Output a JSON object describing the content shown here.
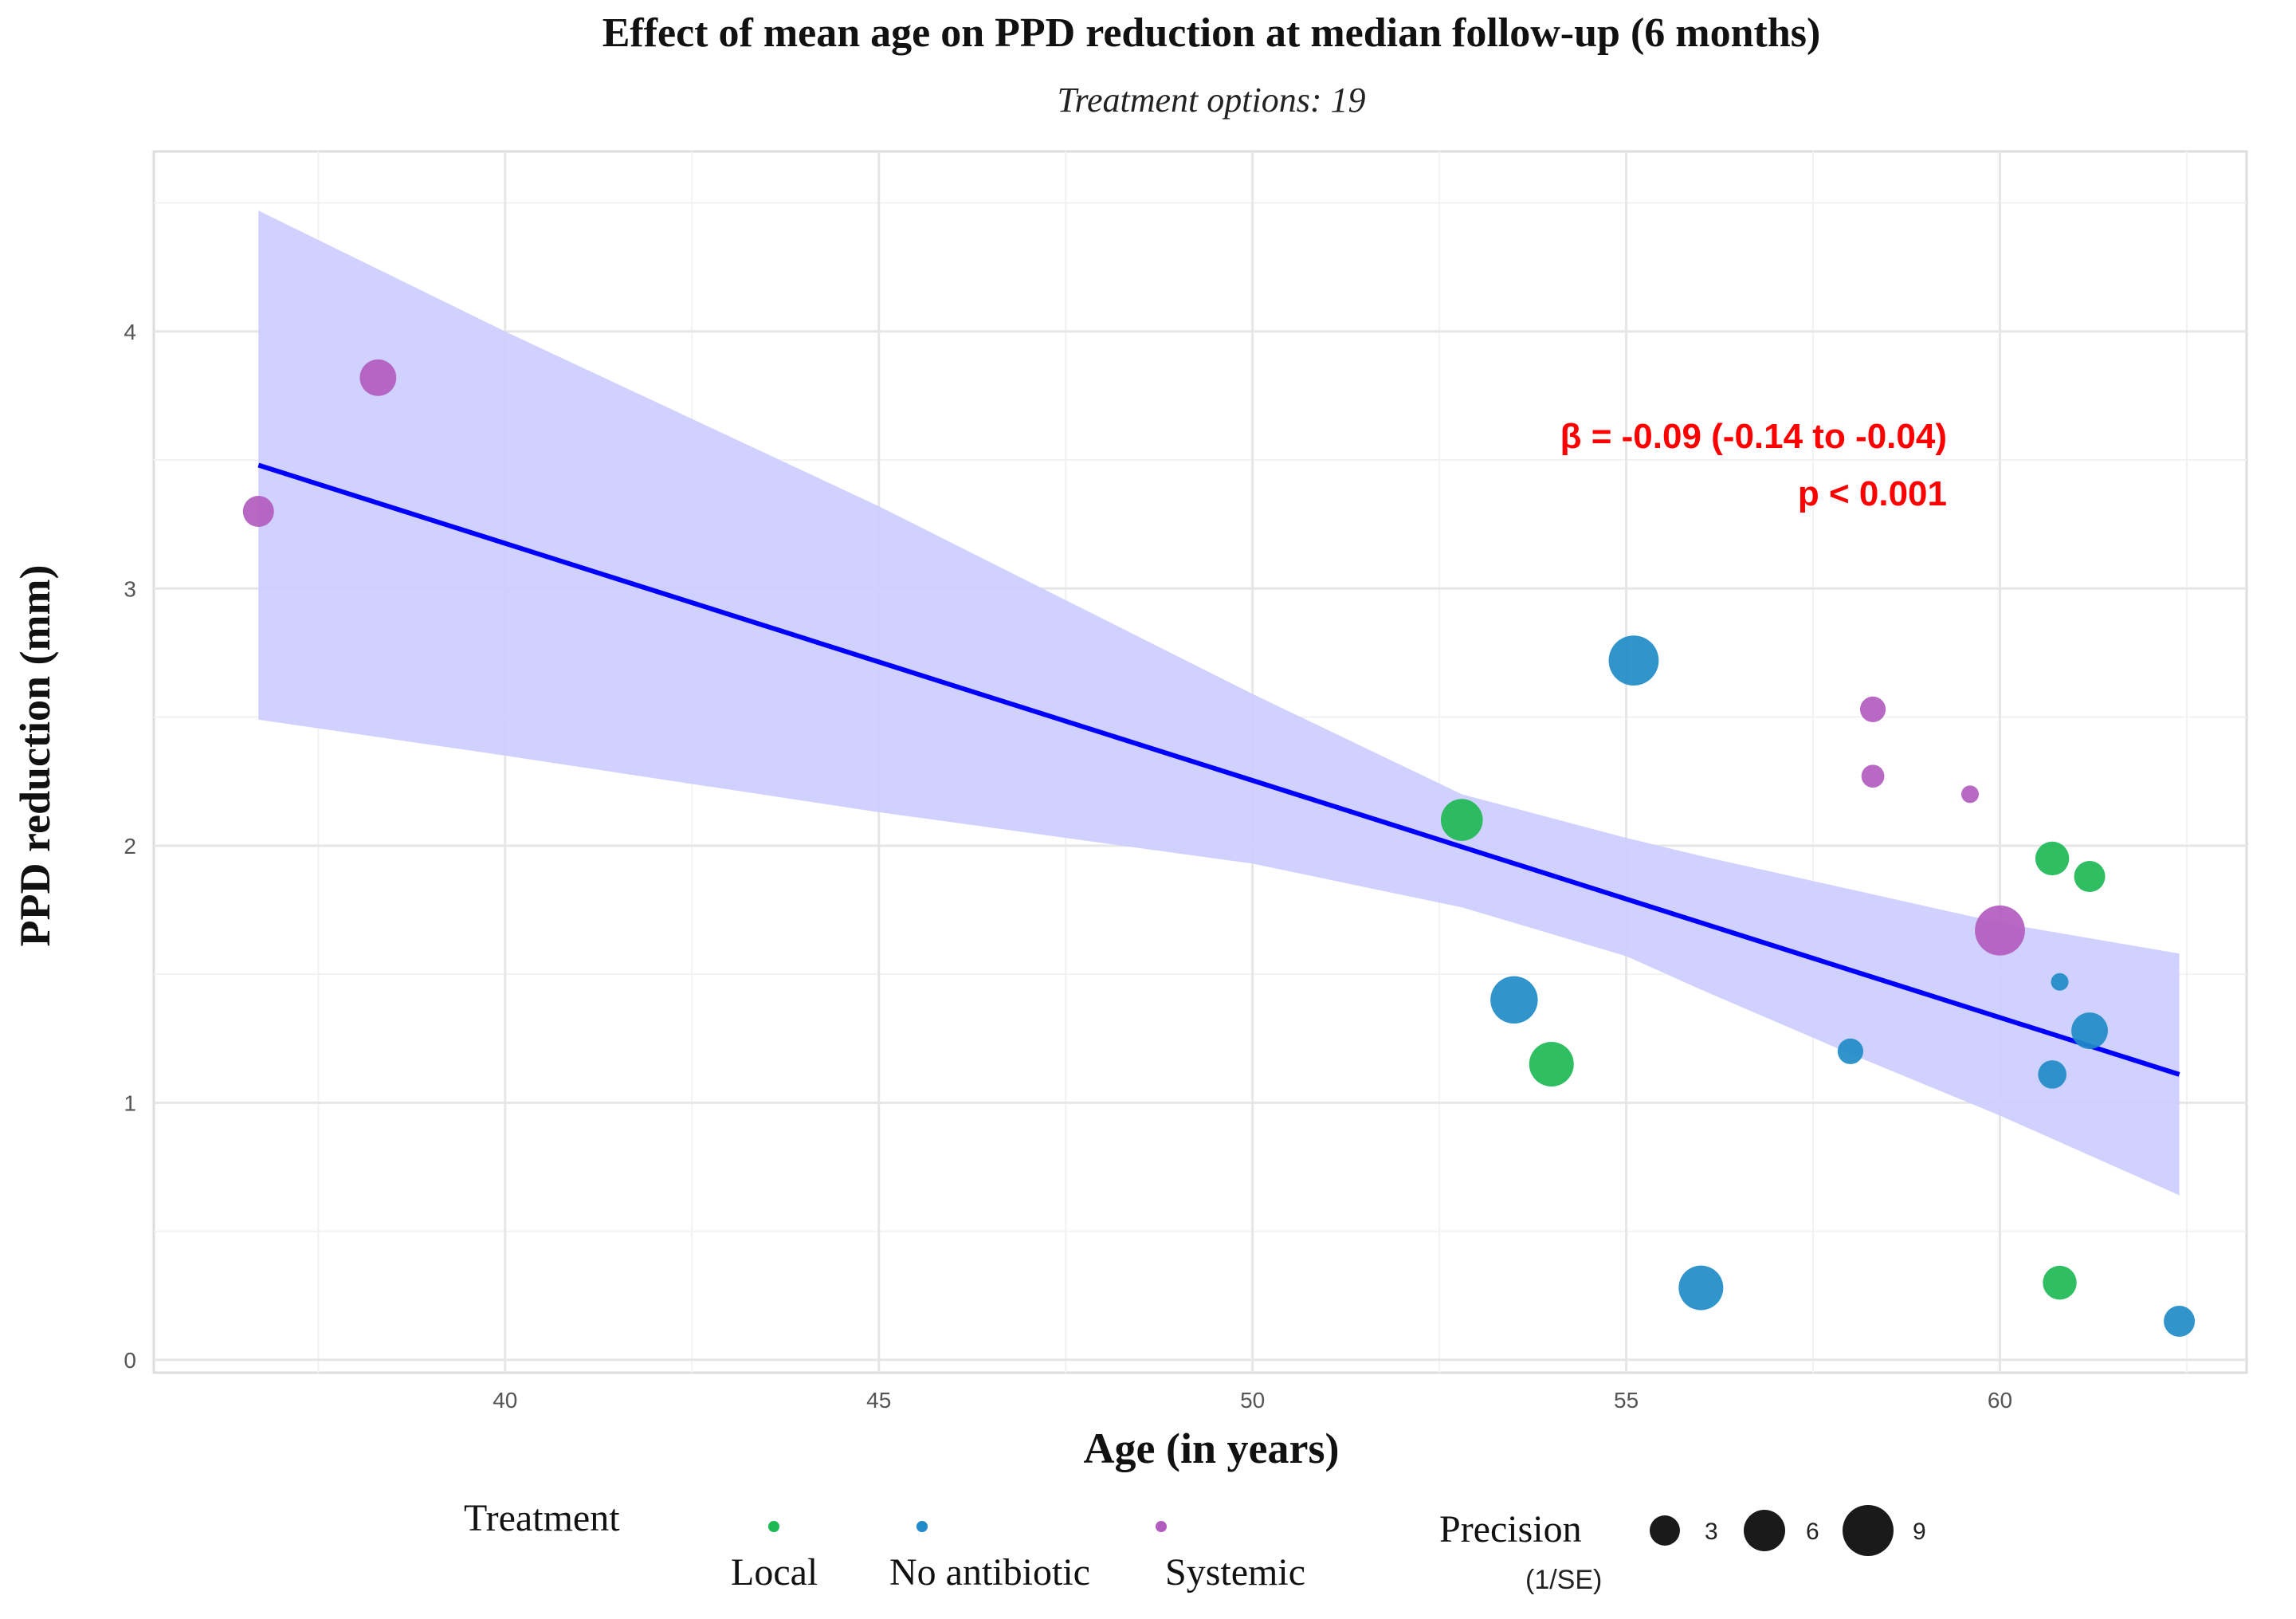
{
  "chart_data": {
    "type": "scatter",
    "title": "Effect of mean age on PPD reduction at median follow-up (6 months)",
    "subtitle": "Treatment options: 19",
    "xlabel": "Age (in years)",
    "ylabel": "PPD reduction (mm)",
    "xlim": [
      35.3,
      63.3
    ],
    "ylim": [
      -0.05,
      4.7
    ],
    "x_ticks": [
      40,
      45,
      50,
      55,
      60
    ],
    "y_ticks": [
      0,
      1,
      2,
      3,
      4
    ],
    "grid": true,
    "colors": {
      "Local": "#1db954",
      "No antibiotic": "#1f8bc7",
      "Systemic": "#b25cbf",
      "fit_line": "#0000ff",
      "ci_band": "#ccccff",
      "annotation": "#ff0000"
    },
    "points": [
      {
        "x": 36.7,
        "y": 3.3,
        "group": "Systemic",
        "precision": 4.5
      },
      {
        "x": 38.3,
        "y": 3.82,
        "group": "Systemic",
        "precision": 5.5
      },
      {
        "x": 52.8,
        "y": 2.1,
        "group": "Local",
        "precision": 6.5
      },
      {
        "x": 53.5,
        "y": 1.4,
        "group": "No antibiotic",
        "precision": 7.5
      },
      {
        "x": 54.0,
        "y": 1.15,
        "group": "Local",
        "precision": 7.0
      },
      {
        "x": 55.1,
        "y": 2.72,
        "group": "No antibiotic",
        "precision": 8.0
      },
      {
        "x": 56.0,
        "y": 0.28,
        "group": "No antibiotic",
        "precision": 7.0
      },
      {
        "x": 58.0,
        "y": 1.2,
        "group": "No antibiotic",
        "precision": 3.5
      },
      {
        "x": 58.3,
        "y": 2.53,
        "group": "Systemic",
        "precision": 3.5
      },
      {
        "x": 58.3,
        "y": 2.27,
        "group": "Systemic",
        "precision": 3.0
      },
      {
        "x": 59.6,
        "y": 2.2,
        "group": "Systemic",
        "precision": 2.0
      },
      {
        "x": 60.0,
        "y": 1.67,
        "group": "Systemic",
        "precision": 8.0
      },
      {
        "x": 60.7,
        "y": 1.95,
        "group": "Local",
        "precision": 5.0
      },
      {
        "x": 60.7,
        "y": 1.11,
        "group": "No antibiotic",
        "precision": 4.0
      },
      {
        "x": 60.8,
        "y": 1.47,
        "group": "No antibiotic",
        "precision": 2.0
      },
      {
        "x": 60.8,
        "y": 0.3,
        "group": "Local",
        "precision": 5.0
      },
      {
        "x": 61.2,
        "y": 1.88,
        "group": "Local",
        "precision": 4.5
      },
      {
        "x": 61.2,
        "y": 1.28,
        "group": "No antibiotic",
        "precision": 5.5
      },
      {
        "x": 62.4,
        "y": 0.15,
        "group": "No antibiotic",
        "precision": 4.5
      }
    ],
    "fit_line": {
      "x": [
        36.7,
        62.4
      ],
      "y": [
        3.48,
        1.11
      ]
    },
    "ci_band": {
      "x": [
        36.7,
        40.0,
        45.0,
        50.0,
        52.8,
        55.0,
        56.0,
        58.0,
        60.0,
        62.4
      ],
      "lower": [
        2.49,
        2.35,
        2.13,
        1.93,
        1.76,
        1.57,
        1.44,
        1.19,
        0.95,
        0.64
      ],
      "upper": [
        4.47,
        4.0,
        3.32,
        2.59,
        2.2,
        2.03,
        1.96,
        1.83,
        1.7,
        1.58
      ]
    },
    "annotation": {
      "line1": "β = -0.09 (-0.14 to -0.04)",
      "line2": "p < 0.001"
    },
    "legend": {
      "placement": "bottom",
      "color_title": "Treatment",
      "color_entries": [
        "Local",
        "No antibiotic",
        "Systemic"
      ],
      "size_title": "Precision",
      "size_subtitle": "(1/SE)",
      "size_entries": [
        3,
        6,
        9
      ]
    }
  }
}
